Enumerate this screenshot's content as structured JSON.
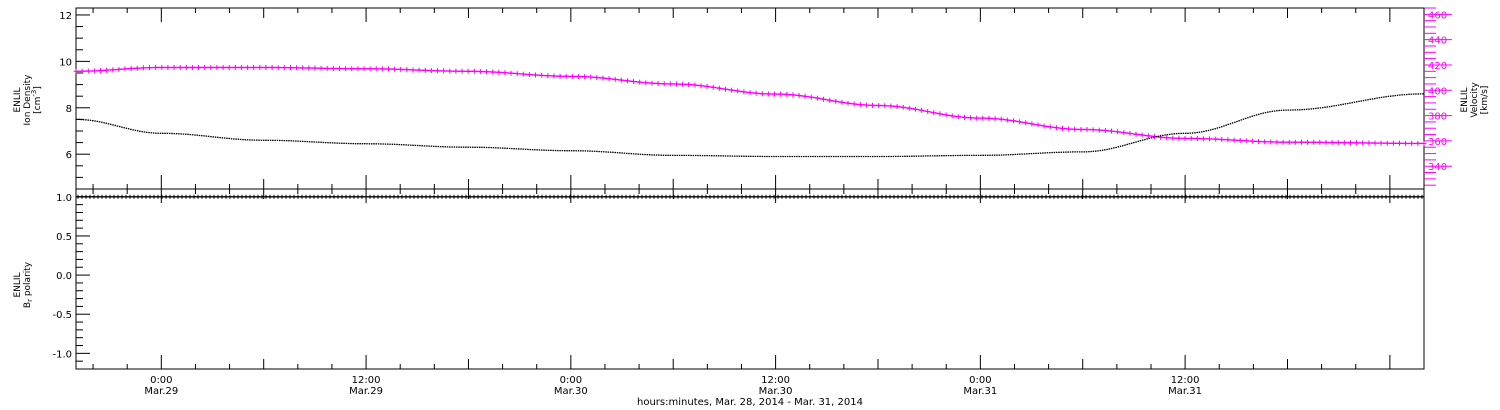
{
  "colors": {
    "axis": "#000000",
    "velocity": "#ff00ff",
    "density": "#000000",
    "background": "#ffffff"
  },
  "footer": {
    "xlabel": "hours:minutes, Mar. 28, 2014 - Mar. 31, 2014"
  },
  "chart_data": [
    {
      "type": "line",
      "panel": "top",
      "xlim": [
        "2014-03-28 19:00",
        "2014-04-01 02:00"
      ],
      "left_axis": {
        "label_lines": [
          "ENLIL",
          "Ion Density"
        ],
        "unit_main": "[cm",
        "unit_sup": "-3",
        "unit_close": "]",
        "ylim": [
          4.5,
          12.3
        ],
        "ticks": [
          6,
          8,
          10,
          12
        ],
        "tick_labels": [
          "6",
          "8",
          "10",
          "12"
        ]
      },
      "right_axis": {
        "label_lines": [
          "ENLIL",
          "Velocity",
          "[km/s]"
        ],
        "ylim": [
          322,
          465
        ],
        "ticks": [
          340,
          360,
          380,
          400,
          420,
          440,
          460
        ],
        "tick_labels": [
          "340",
          "360",
          "380",
          "400",
          "420",
          "440",
          "460"
        ]
      },
      "series": [
        {
          "axis": "left",
          "color": "#000000",
          "x": [
            "2014-03-28 19:00",
            "2014-03-29 00:00",
            "2014-03-29 06:00",
            "2014-03-29 12:00",
            "2014-03-29 18:00",
            "2014-03-30 00:00",
            "2014-03-30 06:00",
            "2014-03-30 12:00",
            "2014-03-30 18:00",
            "2014-03-31 00:00",
            "2014-03-31 06:00",
            "2014-03-31 12:00",
            "2014-03-31 18:00",
            "2014-04-01 02:00"
          ],
          "y": [
            7.5,
            6.9,
            6.6,
            6.45,
            6.3,
            6.15,
            5.95,
            5.9,
            5.9,
            5.95,
            6.1,
            6.9,
            7.9,
            8.6
          ]
        },
        {
          "axis": "right",
          "color": "#ff00ff",
          "x": [
            "2014-03-28 19:00",
            "2014-03-29 00:00",
            "2014-03-29 06:00",
            "2014-03-29 12:00",
            "2014-03-29 18:00",
            "2014-03-30 00:00",
            "2014-03-30 06:00",
            "2014-03-30 12:00",
            "2014-03-30 18:00",
            "2014-03-31 00:00",
            "2014-03-31 06:00",
            "2014-03-31 12:00",
            "2014-03-31 18:00",
            "2014-04-01 02:00"
          ],
          "y": [
            415,
            418,
            418,
            417,
            415,
            411,
            405,
            397,
            388,
            378,
            369,
            362,
            359,
            358
          ]
        }
      ]
    },
    {
      "type": "line",
      "panel": "bottom",
      "xlim": [
        "2014-03-28 19:00",
        "2014-04-01 02:00"
      ],
      "left_axis": {
        "label_lines": [
          "ENLIL",
          "B",
          "polarity"
        ],
        "label_sub": "r",
        "ylim": [
          -1.2,
          1.1
        ],
        "ticks": [
          -1.0,
          -0.5,
          0.0,
          0.5,
          1.0
        ],
        "tick_labels": [
          "-1.0",
          "-0.5",
          "0.0",
          "0.5",
          "1.0"
        ]
      },
      "series": [
        {
          "axis": "left",
          "color": "#000000",
          "x": [
            "2014-03-28 19:00",
            "2014-04-01 02:00"
          ],
          "y": [
            1.0,
            1.0
          ]
        }
      ]
    }
  ],
  "x_axis": {
    "ticks": [
      "2014-03-29 00:00",
      "2014-03-29 12:00",
      "2014-03-30 00:00",
      "2014-03-30 12:00",
      "2014-03-31 00:00",
      "2014-03-31 12:00"
    ],
    "tick_time_labels": [
      "0:00",
      "12:00",
      "0:00",
      "12:00",
      "0:00",
      "12:00"
    ],
    "tick_date_labels": [
      "Mar.29",
      "Mar.29",
      "Mar.30",
      "Mar.30",
      "Mar.31",
      "Mar.31"
    ]
  }
}
